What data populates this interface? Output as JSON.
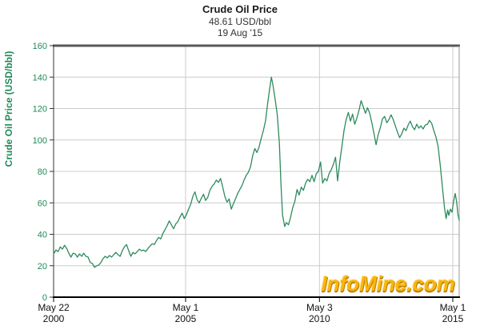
{
  "header": {
    "title": "Crude Oil Price",
    "price": "48.61 USD/bbl",
    "date": "19 Aug '15"
  },
  "y_axis_title": "Crude Oil Price (USD/bbl)",
  "watermark": "InfoMine.com",
  "colors": {
    "line": "#2e8b5e",
    "axis_text_green": "#1e8a5a",
    "x_label_text": "#111111",
    "grid": "#cccccc",
    "border_top": "#595959",
    "border_right": "#999999",
    "axis_left": "#333333",
    "axis_bottom": "#000000",
    "watermark_fill": "#f7b60d",
    "watermark_edge": "#c27c00"
  },
  "chart_data": {
    "type": "line",
    "title": "Crude Oil Price",
    "subtitle_value": "48.61 USD/bbl",
    "subtitle_date": "19 Aug '15",
    "ylabel": "Crude Oil Price (USD/bbl)",
    "xlabel": "",
    "grid": true,
    "legend_position": "none",
    "x_range": [
      2000.39,
      2015.57
    ],
    "y_range": [
      0,
      160
    ],
    "y_ticks": [
      0,
      20,
      40,
      60,
      80,
      100,
      120,
      140,
      160
    ],
    "x_ticks": [
      {
        "line1": "May 22",
        "line2": "2000",
        "year": 2000.39
      },
      {
        "line1": "May 1",
        "line2": "2005",
        "year": 2005.33
      },
      {
        "line1": "May 3",
        "line2": "2010",
        "year": 2010.34
      },
      {
        "line1": "May 1",
        "line2": "2015",
        "year": 2015.33
      }
    ],
    "series": [
      {
        "name": "Crude Oil Price (USD/bbl)",
        "points": [
          [
            2000.39,
            27.5
          ],
          [
            2000.48,
            30
          ],
          [
            2000.56,
            29
          ],
          [
            2000.64,
            32
          ],
          [
            2000.72,
            30.5
          ],
          [
            2000.8,
            33
          ],
          [
            2000.88,
            31
          ],
          [
            2000.96,
            28
          ],
          [
            2001.04,
            25.5
          ],
          [
            2001.12,
            28
          ],
          [
            2001.2,
            27.5
          ],
          [
            2001.28,
            25.5
          ],
          [
            2001.36,
            27.5
          ],
          [
            2001.44,
            26
          ],
          [
            2001.52,
            28
          ],
          [
            2001.6,
            26
          ],
          [
            2001.68,
            25.5
          ],
          [
            2001.76,
            22
          ],
          [
            2001.84,
            21.5
          ],
          [
            2001.92,
            19
          ],
          [
            2002,
            20
          ],
          [
            2002.08,
            20.5
          ],
          [
            2002.16,
            22
          ],
          [
            2002.24,
            24.5
          ],
          [
            2002.32,
            26
          ],
          [
            2002.4,
            25
          ],
          [
            2002.48,
            26.5
          ],
          [
            2002.56,
            25.5
          ],
          [
            2002.64,
            27
          ],
          [
            2002.72,
            28.5
          ],
          [
            2002.8,
            27
          ],
          [
            2002.88,
            26
          ],
          [
            2002.96,
            29.5
          ],
          [
            2003.04,
            32
          ],
          [
            2003.12,
            33.5
          ],
          [
            2003.2,
            29.5
          ],
          [
            2003.28,
            26
          ],
          [
            2003.36,
            28.5
          ],
          [
            2003.44,
            27.5
          ],
          [
            2003.52,
            29
          ],
          [
            2003.6,
            30.5
          ],
          [
            2003.68,
            29.5
          ],
          [
            2003.76,
            30
          ],
          [
            2003.84,
            29
          ],
          [
            2003.92,
            31
          ],
          [
            2004,
            32.5
          ],
          [
            2004.08,
            34
          ],
          [
            2004.16,
            33.5
          ],
          [
            2004.24,
            36
          ],
          [
            2004.32,
            38
          ],
          [
            2004.4,
            37
          ],
          [
            2004.48,
            40.5
          ],
          [
            2004.56,
            43
          ],
          [
            2004.64,
            45.5
          ],
          [
            2004.72,
            48.5
          ],
          [
            2004.8,
            46
          ],
          [
            2004.88,
            43.5
          ],
          [
            2004.96,
            46.5
          ],
          [
            2005.04,
            48
          ],
          [
            2005.12,
            51
          ],
          [
            2005.2,
            53.5
          ],
          [
            2005.28,
            50
          ],
          [
            2005.36,
            52.5
          ],
          [
            2005.44,
            56
          ],
          [
            2005.52,
            59
          ],
          [
            2005.6,
            64
          ],
          [
            2005.68,
            67
          ],
          [
            2005.76,
            62
          ],
          [
            2005.84,
            60
          ],
          [
            2005.92,
            63
          ],
          [
            2006,
            65.5
          ],
          [
            2006.08,
            61.5
          ],
          [
            2006.16,
            63.5
          ],
          [
            2006.24,
            68
          ],
          [
            2006.32,
            70.5
          ],
          [
            2006.4,
            72
          ],
          [
            2006.48,
            74.5
          ],
          [
            2006.56,
            73
          ],
          [
            2006.64,
            75.5
          ],
          [
            2006.72,
            70
          ],
          [
            2006.8,
            64
          ],
          [
            2006.88,
            60.5
          ],
          [
            2006.96,
            62.5
          ],
          [
            2007.04,
            56
          ],
          [
            2007.12,
            59.5
          ],
          [
            2007.2,
            62.5
          ],
          [
            2007.28,
            66
          ],
          [
            2007.36,
            68.5
          ],
          [
            2007.44,
            71
          ],
          [
            2007.52,
            74.5
          ],
          [
            2007.6,
            77.5
          ],
          [
            2007.68,
            79.5
          ],
          [
            2007.76,
            83
          ],
          [
            2007.84,
            90
          ],
          [
            2007.92,
            94.5
          ],
          [
            2008,
            92
          ],
          [
            2008.08,
            95.5
          ],
          [
            2008.16,
            101
          ],
          [
            2008.24,
            106
          ],
          [
            2008.32,
            112
          ],
          [
            2008.4,
            123
          ],
          [
            2008.48,
            133
          ],
          [
            2008.54,
            140
          ],
          [
            2008.6,
            135
          ],
          [
            2008.68,
            126
          ],
          [
            2008.76,
            116
          ],
          [
            2008.84,
            98
          ],
          [
            2008.9,
            72
          ],
          [
            2008.96,
            52
          ],
          [
            2009.04,
            45
          ],
          [
            2009.1,
            47.5
          ],
          [
            2009.18,
            46
          ],
          [
            2009.26,
            51
          ],
          [
            2009.34,
            57
          ],
          [
            2009.42,
            61
          ],
          [
            2009.5,
            68.5
          ],
          [
            2009.58,
            65
          ],
          [
            2009.66,
            70
          ],
          [
            2009.74,
            68
          ],
          [
            2009.82,
            72.5
          ],
          [
            2009.9,
            75
          ],
          [
            2009.98,
            73.5
          ],
          [
            2010.06,
            77.5
          ],
          [
            2010.14,
            73.5
          ],
          [
            2010.22,
            78.5
          ],
          [
            2010.3,
            80
          ],
          [
            2010.38,
            86
          ],
          [
            2010.46,
            72.5
          ],
          [
            2010.54,
            75.5
          ],
          [
            2010.62,
            74
          ],
          [
            2010.7,
            78.5
          ],
          [
            2010.78,
            81
          ],
          [
            2010.86,
            84.5
          ],
          [
            2010.94,
            89
          ],
          [
            2011.02,
            74
          ],
          [
            2011.1,
            86
          ],
          [
            2011.18,
            96
          ],
          [
            2011.26,
            106
          ],
          [
            2011.34,
            113
          ],
          [
            2011.42,
            117.5
          ],
          [
            2011.5,
            112
          ],
          [
            2011.58,
            116.5
          ],
          [
            2011.66,
            110
          ],
          [
            2011.74,
            114
          ],
          [
            2011.82,
            119
          ],
          [
            2011.9,
            125
          ],
          [
            2011.98,
            121
          ],
          [
            2012.06,
            117
          ],
          [
            2012.14,
            120.5
          ],
          [
            2012.22,
            117
          ],
          [
            2012.3,
            111
          ],
          [
            2012.38,
            104
          ],
          [
            2012.46,
            97
          ],
          [
            2012.54,
            103.5
          ],
          [
            2012.62,
            108
          ],
          [
            2012.7,
            113.5
          ],
          [
            2012.78,
            115
          ],
          [
            2012.86,
            111
          ],
          [
            2012.94,
            113
          ],
          [
            2013.02,
            116
          ],
          [
            2013.1,
            113
          ],
          [
            2013.18,
            109
          ],
          [
            2013.26,
            105
          ],
          [
            2013.34,
            101.5
          ],
          [
            2013.42,
            104
          ],
          [
            2013.5,
            107.5
          ],
          [
            2013.58,
            106
          ],
          [
            2013.66,
            109.5
          ],
          [
            2013.74,
            112
          ],
          [
            2013.82,
            108.5
          ],
          [
            2013.9,
            106.5
          ],
          [
            2013.98,
            110
          ],
          [
            2014.06,
            107.5
          ],
          [
            2014.14,
            109
          ],
          [
            2014.22,
            107
          ],
          [
            2014.3,
            109.5
          ],
          [
            2014.38,
            110
          ],
          [
            2014.46,
            112.5
          ],
          [
            2014.54,
            110.5
          ],
          [
            2014.62,
            106
          ],
          [
            2014.7,
            102
          ],
          [
            2014.78,
            96
          ],
          [
            2014.86,
            84
          ],
          [
            2014.94,
            70
          ],
          [
            2015.02,
            57
          ],
          [
            2015.08,
            50
          ],
          [
            2015.14,
            55.5
          ],
          [
            2015.18,
            52
          ],
          [
            2015.24,
            56
          ],
          [
            2015.3,
            54
          ],
          [
            2015.36,
            61
          ],
          [
            2015.42,
            66
          ],
          [
            2015.48,
            60
          ],
          [
            2015.52,
            53
          ],
          [
            2015.57,
            49
          ]
        ]
      }
    ]
  }
}
